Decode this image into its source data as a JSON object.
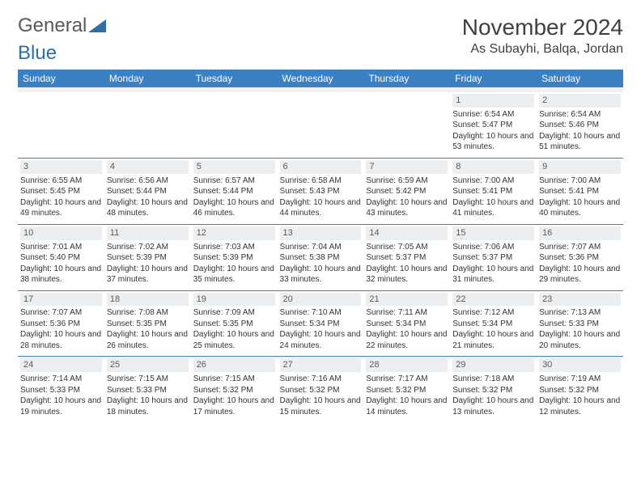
{
  "brand": {
    "part1": "General",
    "part2": "Blue"
  },
  "title": {
    "month": "November 2024",
    "location": "As Subayhi, Balqa, Jordan"
  },
  "colors": {
    "header_bg": "#3a80c3",
    "header_fg": "#ffffff",
    "daynum_bg": "#eceff1",
    "sep": "#3a80c3"
  },
  "daysOfWeek": [
    "Sunday",
    "Monday",
    "Tuesday",
    "Wednesday",
    "Thursday",
    "Friday",
    "Saturday"
  ],
  "firstWeekday": 5,
  "daysInMonth": 30,
  "entries": {
    "1": {
      "sunrise": "6:54 AM",
      "sunset": "5:47 PM",
      "daylight_h": 10,
      "daylight_m": 53
    },
    "2": {
      "sunrise": "6:54 AM",
      "sunset": "5:46 PM",
      "daylight_h": 10,
      "daylight_m": 51
    },
    "3": {
      "sunrise": "6:55 AM",
      "sunset": "5:45 PM",
      "daylight_h": 10,
      "daylight_m": 49
    },
    "4": {
      "sunrise": "6:56 AM",
      "sunset": "5:44 PM",
      "daylight_h": 10,
      "daylight_m": 48
    },
    "5": {
      "sunrise": "6:57 AM",
      "sunset": "5:44 PM",
      "daylight_h": 10,
      "daylight_m": 46
    },
    "6": {
      "sunrise": "6:58 AM",
      "sunset": "5:43 PM",
      "daylight_h": 10,
      "daylight_m": 44
    },
    "7": {
      "sunrise": "6:59 AM",
      "sunset": "5:42 PM",
      "daylight_h": 10,
      "daylight_m": 43
    },
    "8": {
      "sunrise": "7:00 AM",
      "sunset": "5:41 PM",
      "daylight_h": 10,
      "daylight_m": 41
    },
    "9": {
      "sunrise": "7:00 AM",
      "sunset": "5:41 PM",
      "daylight_h": 10,
      "daylight_m": 40
    },
    "10": {
      "sunrise": "7:01 AM",
      "sunset": "5:40 PM",
      "daylight_h": 10,
      "daylight_m": 38
    },
    "11": {
      "sunrise": "7:02 AM",
      "sunset": "5:39 PM",
      "daylight_h": 10,
      "daylight_m": 37
    },
    "12": {
      "sunrise": "7:03 AM",
      "sunset": "5:39 PM",
      "daylight_h": 10,
      "daylight_m": 35
    },
    "13": {
      "sunrise": "7:04 AM",
      "sunset": "5:38 PM",
      "daylight_h": 10,
      "daylight_m": 33
    },
    "14": {
      "sunrise": "7:05 AM",
      "sunset": "5:37 PM",
      "daylight_h": 10,
      "daylight_m": 32
    },
    "15": {
      "sunrise": "7:06 AM",
      "sunset": "5:37 PM",
      "daylight_h": 10,
      "daylight_m": 31
    },
    "16": {
      "sunrise": "7:07 AM",
      "sunset": "5:36 PM",
      "daylight_h": 10,
      "daylight_m": 29
    },
    "17": {
      "sunrise": "7:07 AM",
      "sunset": "5:36 PM",
      "daylight_h": 10,
      "daylight_m": 28
    },
    "18": {
      "sunrise": "7:08 AM",
      "sunset": "5:35 PM",
      "daylight_h": 10,
      "daylight_m": 26
    },
    "19": {
      "sunrise": "7:09 AM",
      "sunset": "5:35 PM",
      "daylight_h": 10,
      "daylight_m": 25
    },
    "20": {
      "sunrise": "7:10 AM",
      "sunset": "5:34 PM",
      "daylight_h": 10,
      "daylight_m": 24
    },
    "21": {
      "sunrise": "7:11 AM",
      "sunset": "5:34 PM",
      "daylight_h": 10,
      "daylight_m": 22
    },
    "22": {
      "sunrise": "7:12 AM",
      "sunset": "5:34 PM",
      "daylight_h": 10,
      "daylight_m": 21
    },
    "23": {
      "sunrise": "7:13 AM",
      "sunset": "5:33 PM",
      "daylight_h": 10,
      "daylight_m": 20
    },
    "24": {
      "sunrise": "7:14 AM",
      "sunset": "5:33 PM",
      "daylight_h": 10,
      "daylight_m": 19
    },
    "25": {
      "sunrise": "7:15 AM",
      "sunset": "5:33 PM",
      "daylight_h": 10,
      "daylight_m": 18
    },
    "26": {
      "sunrise": "7:15 AM",
      "sunset": "5:32 PM",
      "daylight_h": 10,
      "daylight_m": 17
    },
    "27": {
      "sunrise": "7:16 AM",
      "sunset": "5:32 PM",
      "daylight_h": 10,
      "daylight_m": 15
    },
    "28": {
      "sunrise": "7:17 AM",
      "sunset": "5:32 PM",
      "daylight_h": 10,
      "daylight_m": 14
    },
    "29": {
      "sunrise": "7:18 AM",
      "sunset": "5:32 PM",
      "daylight_h": 10,
      "daylight_m": 13
    },
    "30": {
      "sunrise": "7:19 AM",
      "sunset": "5:32 PM",
      "daylight_h": 10,
      "daylight_m": 12
    }
  },
  "labels": {
    "sunrise": "Sunrise:",
    "sunset": "Sunset:",
    "daylight_prefix": "Daylight:",
    "hours_word": "hours",
    "and_word": "and",
    "minutes_word": "minutes."
  }
}
